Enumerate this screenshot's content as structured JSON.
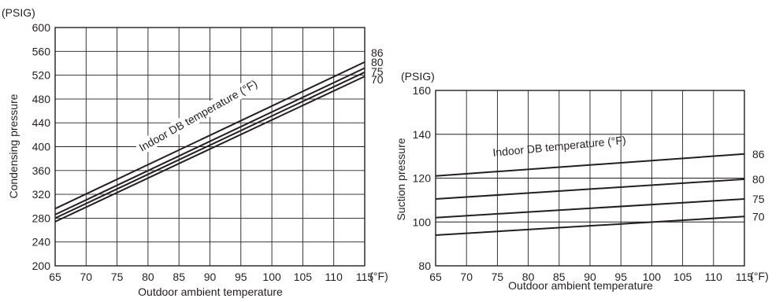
{
  "chart_data": [
    {
      "type": "line",
      "y_unit": "(PSIG)",
      "x_unit": "(°F)",
      "xlabel": "Outdoor ambient temperature",
      "ylabel": "Condensing pressure",
      "annotation": "Indoor DB temperature (°F)",
      "xlim": [
        65,
        115
      ],
      "ylim": [
        200,
        600
      ],
      "x_ticks": [
        "65",
        "70",
        "75",
        "80",
        "85",
        "90",
        "95",
        "100",
        "105",
        "110",
        "115"
      ],
      "y_ticks": [
        "200",
        "240",
        "280",
        "320",
        "360",
        "400",
        "440",
        "480",
        "520",
        "560",
        "600"
      ],
      "grid": true,
      "series": [
        {
          "name": "86",
          "x": [
            65,
            115
          ],
          "y": [
            296,
            542
          ]
        },
        {
          "name": "80",
          "x": [
            65,
            115
          ],
          "y": [
            286,
            532
          ]
        },
        {
          "name": "75",
          "x": [
            65,
            115
          ],
          "y": [
            280,
            525
          ]
        },
        {
          "name": "70",
          "x": [
            65,
            115
          ],
          "y": [
            274,
            518
          ]
        }
      ]
    },
    {
      "type": "line",
      "y_unit": "(PSIG)",
      "x_unit": "(°F)",
      "xlabel": "Outdoor ambient temperature",
      "ylabel": "Suction pressure",
      "annotation": "Indoor DB temperature (°F)",
      "xlim": [
        65,
        115
      ],
      "ylim": [
        80,
        160
      ],
      "x_ticks": [
        "65",
        "70",
        "75",
        "80",
        "85",
        "90",
        "95",
        "100",
        "105",
        "110",
        "115"
      ],
      "y_ticks": [
        "80",
        "100",
        "120",
        "140",
        "160"
      ],
      "grid": true,
      "series": [
        {
          "name": "86",
          "x": [
            65,
            115
          ],
          "y": [
            121,
            131
          ]
        },
        {
          "name": "80",
          "x": [
            65,
            115
          ],
          "y": [
            110.5,
            119.5
          ]
        },
        {
          "name": "75",
          "x": [
            65,
            115
          ],
          "y": [
            102,
            110.5
          ]
        },
        {
          "name": "70",
          "x": [
            65,
            115
          ],
          "y": [
            94,
            102.5
          ]
        }
      ]
    }
  ]
}
